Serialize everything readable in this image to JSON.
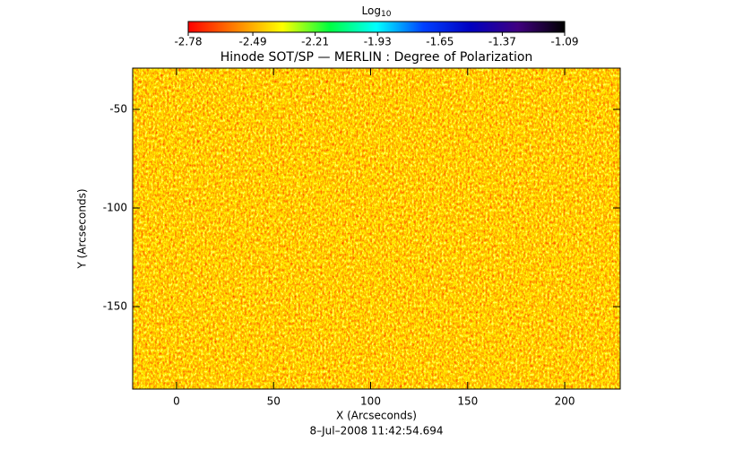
{
  "chart_data": {
    "type": "image",
    "title": "Hinode SOT/SP — MERLIN : Degree of Polarization",
    "xlabel": "X (Arcseconds)",
    "ylabel": "Y (Arcseconds)",
    "footer": "8–Jul–2008 11:42:54.694",
    "xlim": [
      -22.6,
      228.6
    ],
    "xticks": [
      0,
      50,
      100,
      150,
      200
    ],
    "ylim": [
      -191.8,
      -29.1
    ],
    "yticks": [
      -150,
      -100,
      -50
    ],
    "colorbar": {
      "label": "Log",
      "label_subscript": "10",
      "lim": [
        -2.78,
        -1.09
      ],
      "ticks": [
        -2.78,
        -2.49,
        -2.21,
        -1.93,
        -1.65,
        -1.37,
        -1.09
      ],
      "colormap": [
        "#ff0000",
        "#ff8000",
        "#ffff00",
        "#00ff40",
        "#00ffff",
        "#0040ff",
        "#0000c0",
        "#400080",
        "#000000"
      ]
    }
  }
}
